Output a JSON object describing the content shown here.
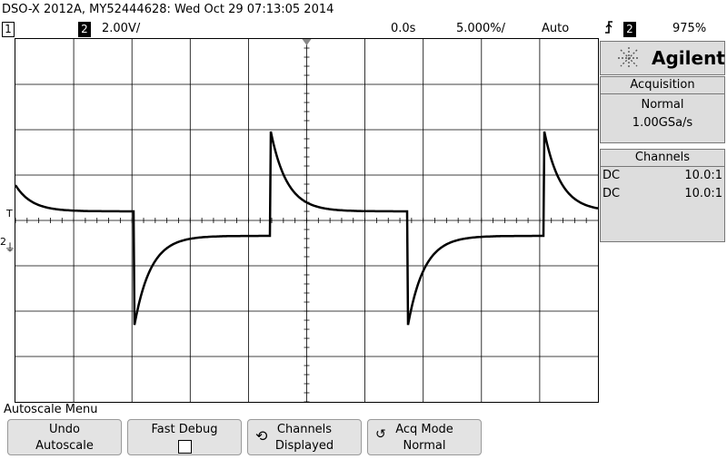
{
  "header": {
    "title": "DSO-X 2012A, MY52444628: Wed Oct 29 07:13:05 2014",
    "ch1_label": "1",
    "ch2_label": "2",
    "ch2_scale": "2.00V/",
    "time_offset": "0.0s",
    "time_scale": "5.000%/",
    "trigger_mode": "Auto",
    "trigger_slope_icon": "rising-edge-icon",
    "trigger_source": "2",
    "trigger_level": "975%"
  },
  "side": {
    "brand": "Agilent",
    "acquisition_title": "Acquisition",
    "acq_mode": "Normal",
    "sample_rate": "1.00GSa/s",
    "channels_title": "Channels",
    "channels": [
      {
        "coupling": "DC",
        "probe": "10.0:1"
      },
      {
        "coupling": "DC",
        "probe": "10.0:1"
      }
    ]
  },
  "menu": {
    "title": "Autoscale Menu",
    "softkeys": [
      {
        "line1": "Undo",
        "line2": "Autoscale"
      },
      {
        "line1": "Fast Debug",
        "line2": ""
      },
      {
        "line1": "Channels",
        "line2": "Displayed"
      },
      {
        "line1": "Acq Mode",
        "line2": "Normal"
      }
    ]
  },
  "markers": {
    "trigger": "T",
    "ch2_ground": "2"
  },
  "waveform": {
    "channel": "2",
    "shape": "differentiated square wave",
    "volts_per_div": 2.0,
    "periods_visible": 2
  }
}
